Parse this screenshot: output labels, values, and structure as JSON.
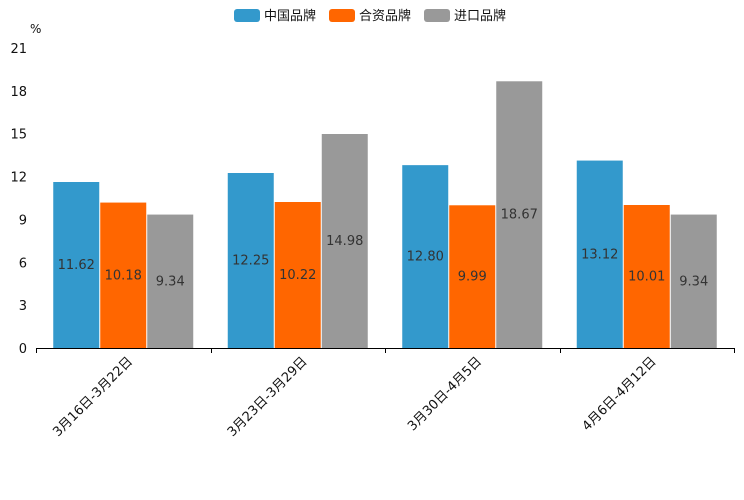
{
  "chart_data": {
    "type": "bar",
    "title": "",
    "unit": "%",
    "xlabel": "",
    "ylabel": "%",
    "ylim": [
      0,
      21
    ],
    "yticks": [
      0,
      3,
      6,
      9,
      12,
      15,
      18,
      21
    ],
    "grid": false,
    "legend_position": "top-center",
    "categories": [
      "3月16日-3月22日",
      "3月23日-3月29日",
      "3月30日-4月5日",
      "4月6日-4月12日"
    ],
    "series": [
      {
        "name": "中国品牌",
        "color": "#3399cc",
        "values": [
          11.62,
          12.25,
          12.8,
          13.12
        ],
        "labels": [
          "11.62",
          "12.25",
          "12.80",
          "13.12"
        ]
      },
      {
        "name": "合资品牌",
        "color": "#ff6600",
        "values": [
          10.18,
          10.22,
          9.99,
          10.01
        ],
        "labels": [
          "10.18",
          "10.22",
          "9.99",
          "10.01"
        ]
      },
      {
        "name": "进口品牌",
        "color": "#999999",
        "values": [
          9.34,
          14.98,
          18.67,
          9.34
        ],
        "labels": [
          "9.34",
          "14.98",
          "18.67",
          "9.34"
        ]
      }
    ]
  }
}
